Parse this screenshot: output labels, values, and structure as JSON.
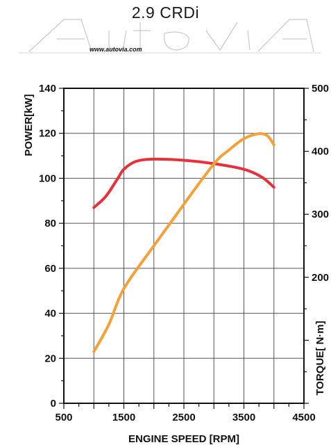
{
  "title": "2.9 CRDi",
  "logo_text": "AutoviA",
  "website": "www.autovia.com",
  "colors": {
    "power": "#e8303a",
    "torque": "#f5a13a",
    "grid": "#555555",
    "axis": "#111111"
  },
  "chart_data": {
    "type": "line",
    "xlabel": "ENGINE SPEED [RPM]",
    "ylabel": "POWER[kW]",
    "y2label": "TORQUE[ N·m]",
    "xlim": [
      500,
      4500
    ],
    "ylim": [
      0,
      140
    ],
    "y2lim": [
      0,
      500
    ],
    "x_tick_labels": [
      "500",
      "1500",
      "2500",
      "3500",
      "4500"
    ],
    "y_tick_labels": [
      "0",
      "20",
      "40",
      "60",
      "80",
      "100",
      "120",
      "140"
    ],
    "y2_tick_labels": [
      "200",
      "300",
      "400",
      "500"
    ],
    "grid": true,
    "series": [
      {
        "color": "#e8303a",
        "axis": "left",
        "x": [
          1000,
          1200,
          1400,
          1500,
          1700,
          2000,
          2500,
          3000,
          3500,
          3800,
          4000
        ],
        "y": [
          87,
          92,
          100,
          104,
          107.5,
          108.5,
          108,
          106.5,
          104,
          100.5,
          96
        ]
      },
      {
        "color": "#f5a13a",
        "axis": "right",
        "x": [
          1000,
          1250,
          1500,
          2000,
          2500,
          3000,
          3250,
          3500,
          3750,
          3900,
          4000
        ],
        "y": [
          82,
          125,
          182,
          250,
          316,
          380,
          402,
          420,
          428,
          424,
          410
        ]
      }
    ]
  }
}
